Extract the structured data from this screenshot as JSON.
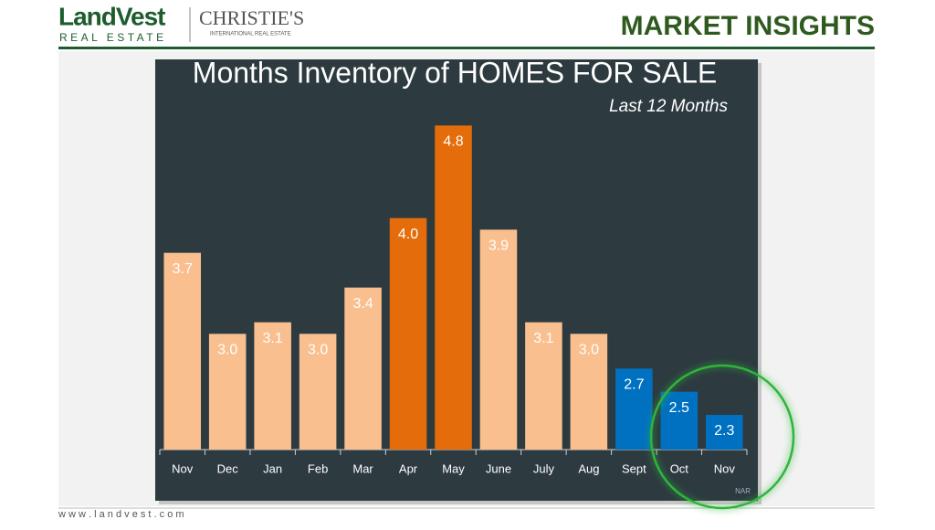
{
  "header": {
    "brand": "LandVest",
    "brand_sub": "REAL ESTATE",
    "partner": "CHRISTIE'S",
    "partner_sub": "INTERNATIONAL REAL ESTATE",
    "section": "MARKET INSIGHTS"
  },
  "footer": {
    "url": "w w w . l a n d v e s t . c o m"
  },
  "chart_data": {
    "type": "bar",
    "title": "Months Inventory of HOMES FOR SALE",
    "subtitle": "Last 12 Months",
    "source": "NAR",
    "categories": [
      "Nov",
      "Dec",
      "Jan",
      "Feb",
      "Mar",
      "Apr",
      "May",
      "June",
      "July",
      "Aug",
      "Sept",
      "Oct",
      "Nov"
    ],
    "values": [
      3.7,
      3,
      3.1,
      3,
      3.4,
      4,
      4.8,
      3.9,
      3.1,
      3,
      2.7,
      2.5,
      2.3
    ],
    "value_labels": [
      "3.7",
      "3.0",
      "3.1",
      "3.0",
      "3.4",
      "4.0",
      "4.8",
      "3.9",
      "3.1",
      "3.0",
      "2.7",
      "2.5",
      "2.3"
    ],
    "colors": [
      "#f9bf8f",
      "#f9bf8f",
      "#f9bf8f",
      "#f9bf8f",
      "#f9bf8f",
      "#e46c0a",
      "#e46c0a",
      "#f9bf8f",
      "#f9bf8f",
      "#f9bf8f",
      "#0070c0",
      "#0070c0",
      "#0070c0"
    ],
    "ylim": [
      2,
      5
    ]
  }
}
